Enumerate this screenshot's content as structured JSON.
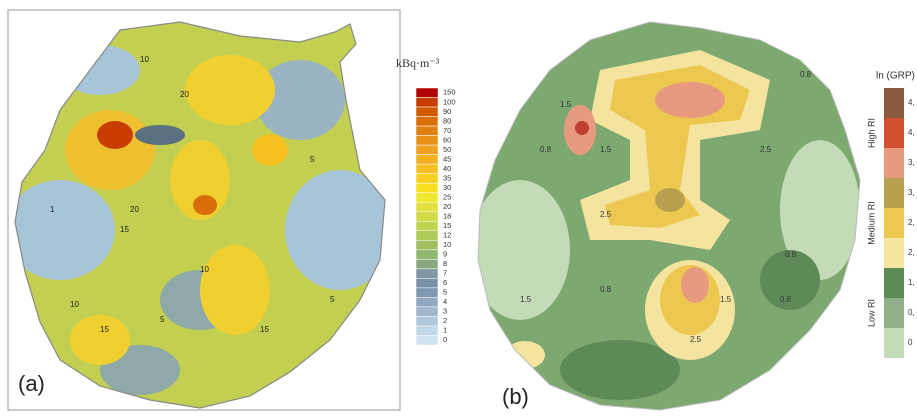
{
  "panel_a": {
    "label": "(a)",
    "unit": "kBq·m⁻³",
    "levels": [
      150,
      100,
      90,
      80,
      70,
      60,
      50,
      45,
      40,
      35,
      30,
      25,
      20,
      18,
      15,
      12,
      10,
      9,
      8,
      7,
      6,
      5,
      4,
      3,
      2,
      1,
      0
    ],
    "colors": [
      "#b30000",
      "#c83c00",
      "#d05a00",
      "#d86e08",
      "#e08010",
      "#e89018",
      "#eea020",
      "#f2b020",
      "#f5c020",
      "#f8d020",
      "#f8e020",
      "#f0e830",
      "#e0e040",
      "#d0dc48",
      "#c0d450",
      "#b0cc58",
      "#a0c060",
      "#90b870",
      "#88a880",
      "#8098a0",
      "#7890a8",
      "#8098b0",
      "#90a8c0",
      "#a0b8d0",
      "#b0c8dc",
      "#c0d8e8",
      "#d0e4f0"
    ],
    "contour_labels": [
      "10",
      "20",
      "15",
      "5",
      "1",
      "10",
      "20",
      "15",
      "5",
      "10",
      "15",
      "5"
    ]
  },
  "panel_b": {
    "label": "(b)",
    "legend_title": "ln (GRP)",
    "classes": [
      "High RI",
      "Medium RI",
      "Low RI"
    ],
    "levels": [
      "4,",
      "4,",
      "3,",
      "3,",
      "2,",
      "2,",
      "1,",
      "0,",
      "0"
    ],
    "colors": [
      "#8a5a40",
      "#d05030",
      "#e89a80",
      "#b8a050",
      "#ecc850",
      "#f4e4a0",
      "#5e8a58",
      "#8fb088",
      "#c4dbb8"
    ],
    "contour_labels": [
      "0.8",
      "1.5",
      "0.8",
      "2.5",
      "1.5",
      "0.8",
      "2.5",
      "0.8",
      "1.5",
      "2.5",
      "1.5",
      "0.8"
    ]
  }
}
